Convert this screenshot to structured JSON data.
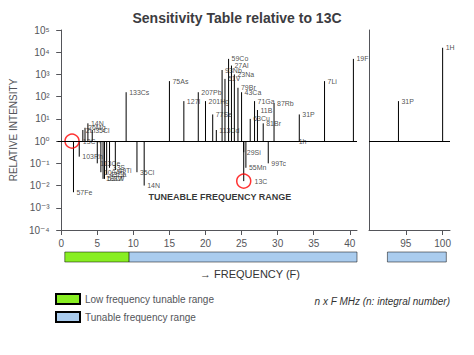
{
  "chart_data": {
    "type": "stem",
    "title": "Sensitivity Table relative to 13C",
    "xlabel": "→ FREQUENCY (F)",
    "ylabel": "RELATIVE INTENSITY",
    "log": "y",
    "grid": false,
    "legend": "lower left",
    "xlim": [
      -0.5,
      101
    ],
    "x_break": [
      41,
      90
    ],
    "xticks": [
      0,
      5,
      10,
      15,
      20,
      25,
      30,
      35,
      40,
      95,
      100
    ],
    "ylim": [
      0.0001,
      100000
    ],
    "yticks": [
      {
        "value": 0.0001,
        "label": "10⁻⁴"
      },
      {
        "value": 0.001,
        "label": "10⁻³"
      },
      {
        "value": 0.01,
        "label": "10⁻²"
      },
      {
        "value": 0.1,
        "label": "10⁻¹"
      },
      {
        "value": 1,
        "label": "10⁰"
      },
      {
        "value": 10,
        "label": "10¹"
      },
      {
        "value": 100,
        "label": "10²"
      },
      {
        "value": 1000,
        "label": "10³"
      },
      {
        "value": 10000,
        "label": "10⁴"
      },
      {
        "value": 100000,
        "label": "10⁵"
      }
    ],
    "baseline": 1,
    "color": "#000000",
    "x": [
      1.5,
      1.7,
      2.5,
      3.0,
      3.3,
      3.7,
      4.3,
      5.0,
      5.5,
      5.8,
      6.0,
      6.3,
      6.7,
      7.5,
      9.0,
      10.5,
      11.5,
      15.0,
      17.0,
      19.0,
      20.0,
      21.0,
      21.5,
      22.3,
      22.7,
      23.2,
      23.6,
      24.0,
      24.5,
      25.0,
      25.3,
      25.3,
      25.6,
      26.2,
      26.8,
      27.2,
      28.0,
      28.7,
      29.5,
      32.5,
      33.0,
      36.5,
      40.5,
      94.0,
      100.0
    ],
    "values": [
      1,
      0.00501187234,
      0.199526231,
      3.16227766,
      3.98107171,
      6.30957344,
      3.16227766,
      0.1,
      0.0398107171,
      0.0199526231,
      0.0199526231,
      0.0316227766,
      0.0630957344,
      0.0501187234,
      158.489319,
      0.0398107171,
      0.01,
      501.187234,
      63.0957344,
      158.489319,
      63.0957344,
      15.8489319,
      3.16227766,
      1584.89319,
      630.957344,
      5011.87234,
      2511.88643,
      1000,
      251.188643,
      158.489319,
      0.316227766,
      0.0158489319,
      0.0630957344,
      10,
      63.0957344,
      25.1188643,
      6.30957344,
      0.1,
      50.1187234,
      1,
      15.8489319,
      501.187234,
      5011.87234,
      63.0957344,
      15848.9319
    ],
    "labels": [
      "13C→",
      "57Fe",
      "103Rh",
      "2Li",
      "26Mg",
      "14N",
      "35Cl",
      "113Ce",
      "109Ag",
      "183W",
      "53Cr",
      "43Ca",
      "33S",
      "49Ti",
      "133Cs",
      "35Cl",
      "14N",
      "75As",
      "127I",
      "207Pb",
      "201Hg",
      "77Se",
      "113Cd",
      "93Nb",
      "51V",
      "59Co",
      "27Al",
      "23Na",
      "79Br",
      "43Ca",
      "29Si",
      "13C",
      "55Mn",
      "63Cu",
      "71Ga",
      "11B",
      "81Br",
      "99Tc",
      "87Rb",
      "1h",
      "31P",
      "7Li",
      "19F",
      "31P",
      "1H"
    ],
    "circled": [
      true,
      false,
      false,
      false,
      false,
      false,
      false,
      false,
      false,
      false,
      false,
      false,
      false,
      false,
      false,
      false,
      false,
      false,
      false,
      false,
      false,
      false,
      false,
      false,
      false,
      false,
      false,
      false,
      false,
      false,
      false,
      true,
      false,
      false,
      false,
      false,
      false,
      false,
      false,
      false,
      false,
      false,
      false,
      false,
      false
    ],
    "circle_color": "#ff0000",
    "annotation": {
      "text": "TUNEABLE FREQUENCY RANGE",
      "x": 22,
      "y": 0.00316227766
    },
    "note": "n x F MHz (n: integral number)",
    "ranges": [
      {
        "name": "Low frequency tunable range",
        "color": "#88ee22",
        "spans": [
          [
            1.5,
            10.2
          ]
        ]
      },
      {
        "name": "Tunable frequency range",
        "color": "#aaccee",
        "spans": [
          [
            10.2,
            41.0
          ],
          [
            92.5,
            100.5
          ]
        ]
      }
    ]
  }
}
